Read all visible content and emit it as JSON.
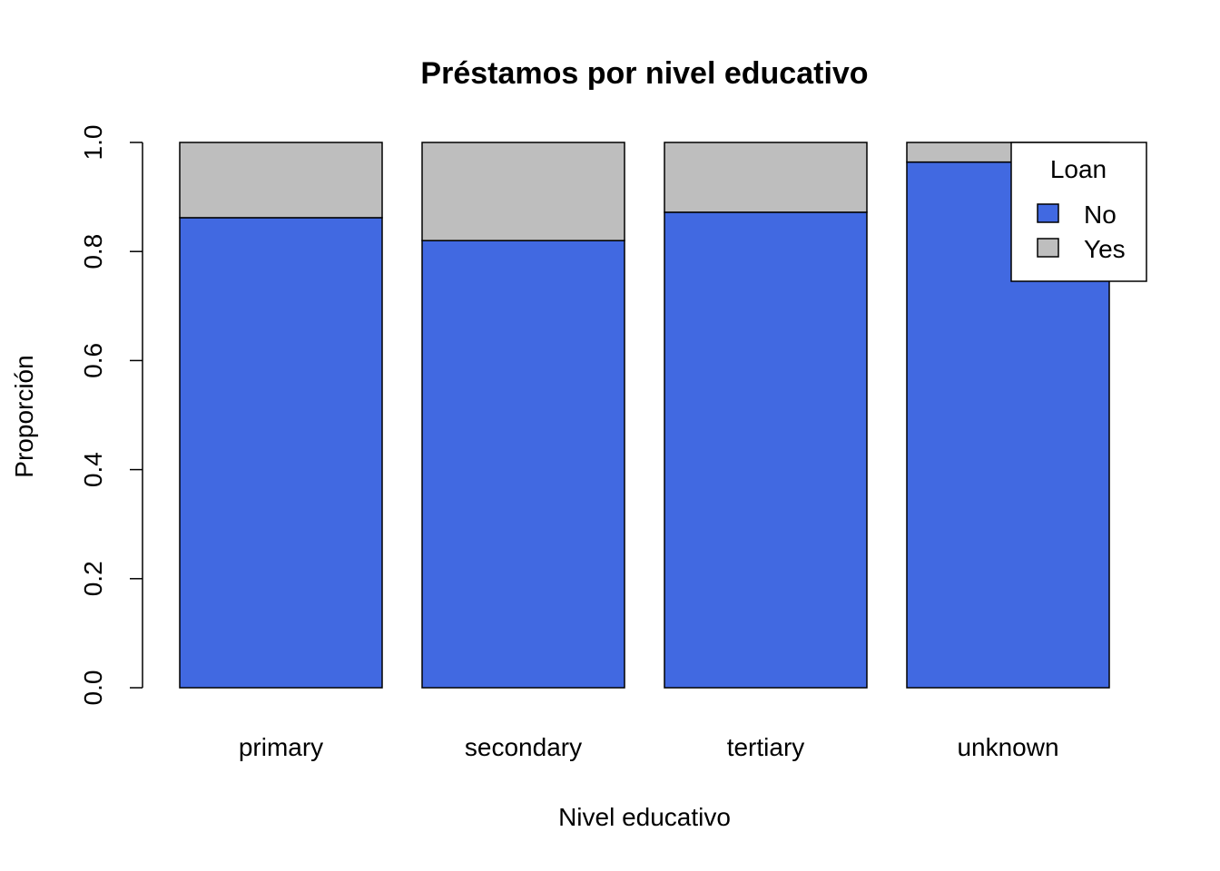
{
  "chart_data": {
    "type": "bar",
    "stacked": true,
    "title": "Préstamos por nivel educativo",
    "xlabel": "Nivel educativo",
    "ylabel": "Proporción",
    "categories": [
      "primary",
      "secondary",
      "tertiary",
      "unknown"
    ],
    "series": [
      {
        "name": "No",
        "values": [
          0.862,
          0.82,
          0.872,
          0.964
        ],
        "color": "#4169E1"
      },
      {
        "name": "Yes",
        "values": [
          0.138,
          0.18,
          0.128,
          0.036
        ],
        "color": "#BEBEBE"
      }
    ],
    "ylim": [
      0,
      1
    ],
    "yticks": [
      "0.0",
      "0.2",
      "0.4",
      "0.6",
      "0.8",
      "1.0"
    ],
    "grid": false,
    "legend": {
      "title": "Loan",
      "position": "top-right",
      "entries": [
        "No",
        "Yes"
      ]
    }
  }
}
